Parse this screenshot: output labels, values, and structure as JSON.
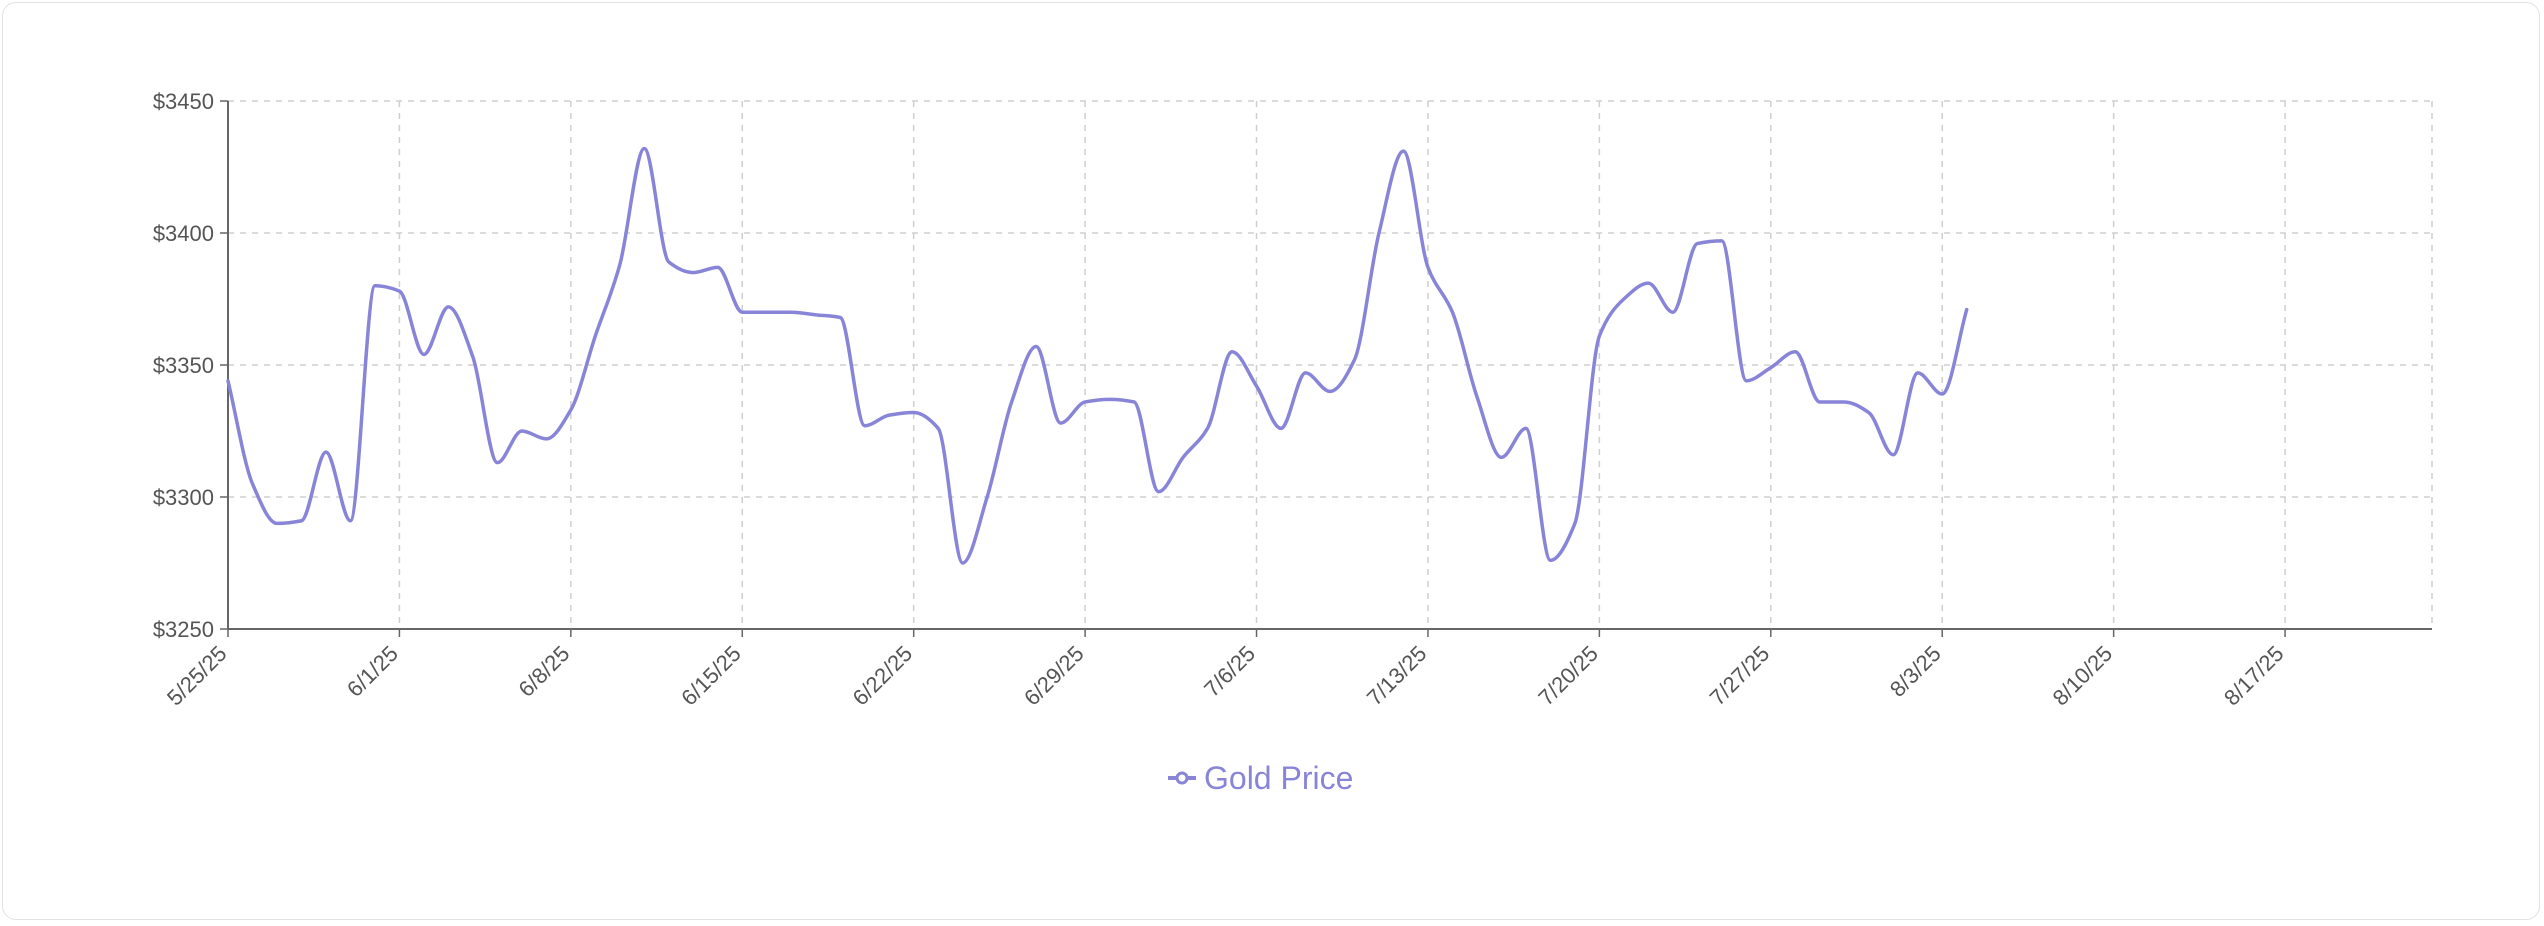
{
  "chart_data": {
    "type": "line",
    "title": "",
    "xlabel": "",
    "ylabel": "",
    "ylim": [
      3250,
      3450
    ],
    "y_ticks": [
      3250,
      3300,
      3350,
      3400,
      3450
    ],
    "y_tick_prefix": "$",
    "grid": true,
    "legend_position": "bottom",
    "x_range": [
      "5/25/25",
      "8/23/25"
    ],
    "x_ticks": [
      "5/25/25",
      "6/1/25",
      "6/8/25",
      "6/15/25",
      "6/22/25",
      "6/29/25",
      "7/6/25",
      "7/13/25",
      "7/20/25",
      "7/27/25",
      "8/3/25",
      "8/10/25",
      "8/17/25"
    ],
    "series": [
      {
        "name": "Gold Price",
        "color": "#8884d8",
        "points": [
          [
            "5/25/25",
            3344
          ],
          [
            "5/26/25",
            3305
          ],
          [
            "5/27/25",
            3290
          ],
          [
            "5/28/25",
            3291
          ],
          [
            "5/29/25",
            3317
          ],
          [
            "5/30/25",
            3291
          ],
          [
            "5/31/25",
            3380
          ],
          [
            "6/1/25",
            3378
          ],
          [
            "6/2/25",
            3354
          ],
          [
            "6/3/25",
            3372
          ],
          [
            "6/4/25",
            3353
          ],
          [
            "6/5/25",
            3313
          ],
          [
            "6/6/25",
            3325
          ],
          [
            "6/7/25",
            3322
          ],
          [
            "6/8/25",
            3333
          ],
          [
            "6/9/25",
            3361
          ],
          [
            "6/10/25",
            3388
          ],
          [
            "6/11/25",
            3432
          ],
          [
            "6/12/25",
            3389
          ],
          [
            "6/13/25",
            3385
          ],
          [
            "6/14/25",
            3387
          ],
          [
            "6/15/25",
            3370
          ],
          [
            "6/16/25",
            3370
          ],
          [
            "6/17/25",
            3370
          ],
          [
            "6/18/25",
            3369
          ],
          [
            "6/19/25",
            3368
          ],
          [
            "6/20/25",
            3327
          ],
          [
            "6/21/25",
            3331
          ],
          [
            "6/22/25",
            3332
          ],
          [
            "6/23/25",
            3326
          ],
          [
            "6/24/25",
            3275
          ],
          [
            "6/25/25",
            3300
          ],
          [
            "6/26/25",
            3336
          ],
          [
            "6/27/25",
            3357
          ],
          [
            "6/28/25",
            3328
          ],
          [
            "6/29/25",
            3336
          ],
          [
            "6/30/25",
            3337
          ],
          [
            "7/1/25",
            3336
          ],
          [
            "7/2/25",
            3302
          ],
          [
            "7/3/25",
            3315
          ],
          [
            "7/4/25",
            3326
          ],
          [
            "7/5/25",
            3355
          ],
          [
            "7/6/25",
            3342
          ],
          [
            "7/7/25",
            3326
          ],
          [
            "7/8/25",
            3347
          ],
          [
            "7/9/25",
            3340
          ],
          [
            "7/10/25",
            3352
          ],
          [
            "7/11/25",
            3400
          ],
          [
            "7/12/25",
            3431
          ],
          [
            "7/13/25",
            3387
          ],
          [
            "7/14/25",
            3370
          ],
          [
            "7/15/25",
            3338
          ],
          [
            "7/16/25",
            3315
          ],
          [
            "7/17/25",
            3326
          ],
          [
            "7/18/25",
            3276
          ],
          [
            "7/19/25",
            3290
          ],
          [
            "7/20/25",
            3361
          ],
          [
            "7/21/25",
            3375
          ],
          [
            "7/22/25",
            3381
          ],
          [
            "7/23/25",
            3370
          ],
          [
            "7/24/25",
            3396
          ],
          [
            "7/25/25",
            3397
          ],
          [
            "7/26/25",
            3344
          ],
          [
            "7/27/25",
            3349
          ],
          [
            "7/28/25",
            3355
          ],
          [
            "7/29/25",
            3336
          ],
          [
            "7/30/25",
            3336
          ],
          [
            "7/31/25",
            3332
          ],
          [
            "8/1/25",
            3316
          ],
          [
            "8/2/25",
            3347
          ],
          [
            "8/3/25",
            3339
          ],
          [
            "8/4/25",
            3371
          ]
        ]
      }
    ]
  }
}
